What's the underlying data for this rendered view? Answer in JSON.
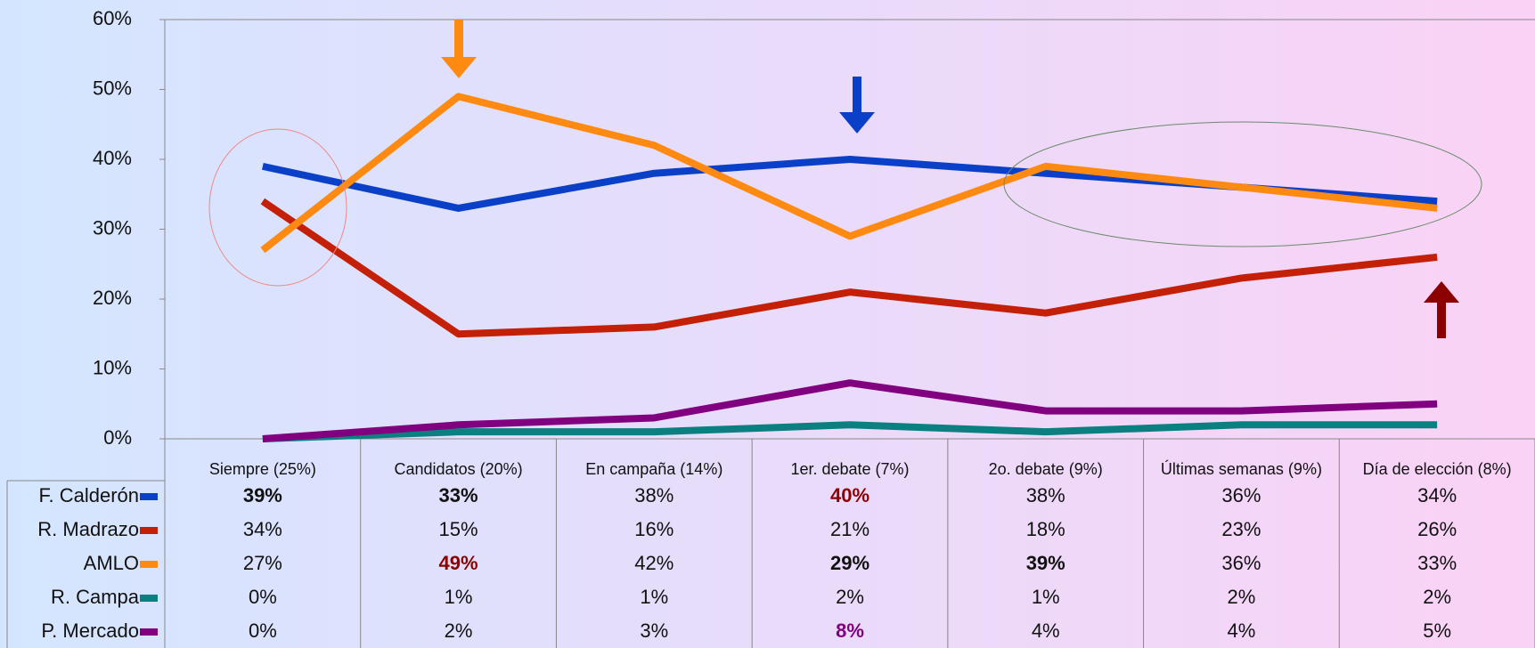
{
  "chart_data": {
    "type": "line",
    "categories": [
      "Siempre (25%)",
      "Candidatos (20%)",
      "En campaña (14%)",
      "1er. debate (7%)",
      "2o. debate (9%)",
      "Últimas semanas (9%)",
      "Día de elección (8%)"
    ],
    "ylim": [
      0,
      60
    ],
    "yticks": [
      {
        "value": 0,
        "label": "0%"
      },
      {
        "value": 10,
        "label": "10%"
      },
      {
        "value": 20,
        "label": "20%"
      },
      {
        "value": 30,
        "label": "30%"
      },
      {
        "value": 40,
        "label": "40%"
      },
      {
        "value": 50,
        "label": "50%"
      },
      {
        "value": 60,
        "label": "60%"
      }
    ],
    "series": [
      {
        "name": "F. Calderón",
        "color": "#0a40c8",
        "values": [
          39,
          33,
          38,
          40,
          38,
          36,
          34
        ],
        "value_labels": [
          "39%",
          "33%",
          "38%",
          "40%",
          "38%",
          "36%",
          "34%"
        ]
      },
      {
        "name": "R. Madrazo",
        "color": "#c42008",
        "values": [
          34,
          15,
          16,
          21,
          18,
          23,
          26
        ],
        "value_labels": [
          "34%",
          "15%",
          "16%",
          "21%",
          "18%",
          "23%",
          "26%"
        ]
      },
      {
        "name": "AMLO",
        "color": "#ff8a12",
        "values": [
          27,
          49,
          42,
          29,
          39,
          36,
          33
        ],
        "value_labels": [
          "27%",
          "49%",
          "42%",
          "29%",
          "39%",
          "36%",
          "33%"
        ]
      },
      {
        "name": "R. Campa",
        "color": "#0a8080",
        "values": [
          0,
          1,
          1,
          2,
          1,
          2,
          2
        ],
        "value_labels": [
          "0%",
          "1%",
          "1%",
          "2%",
          "1%",
          "2%",
          "2%"
        ]
      },
      {
        "name": "P. Mercado",
        "color": "#800080",
        "values": [
          0,
          2,
          3,
          8,
          4,
          4,
          5
        ],
        "value_labels": [
          "0%",
          "2%",
          "3%",
          "8%",
          "4%",
          "4%",
          "5%"
        ]
      }
    ]
  }
}
